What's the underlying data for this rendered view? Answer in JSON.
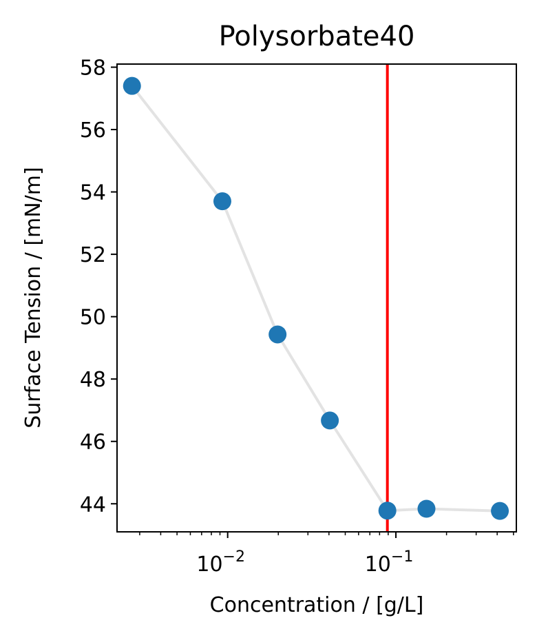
{
  "chart_data": {
    "type": "line",
    "title": "Polysorbate40",
    "xlabel": "Concentration / [g/L]",
    "ylabel": "Surface Tension / [mN/m]",
    "xscale": "log",
    "xlim": [
      0.0022,
      0.52
    ],
    "ylim": [
      43.1,
      58.1
    ],
    "yticks": [
      44,
      46,
      48,
      50,
      52,
      54,
      56,
      58
    ],
    "xticks": [
      {
        "value": 0.01,
        "base": "10",
        "exp": "−2"
      },
      {
        "value": 0.1,
        "base": "10",
        "exp": "−1"
      }
    ],
    "grid": false,
    "series": [
      {
        "x": [
          0.0027,
          0.0093,
          0.0198,
          0.0405,
          0.089,
          0.152,
          0.415
        ],
        "y": [
          57.4,
          53.7,
          49.43,
          46.67,
          43.78,
          43.84,
          43.77
        ],
        "marker_color": "#1f77b4",
        "line_color": "#e3e3e3"
      }
    ],
    "vline": {
      "x": 0.089,
      "color": "#ff0000"
    }
  }
}
